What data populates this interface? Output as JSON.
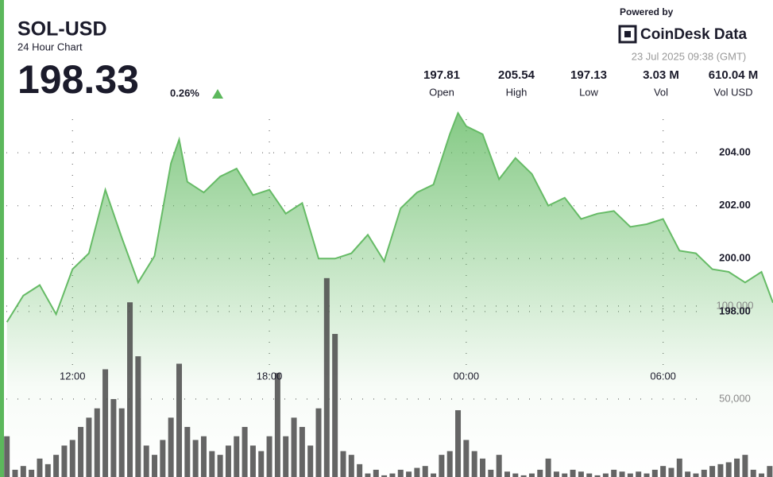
{
  "header": {
    "symbol": "SOL-USD",
    "subtitle": "24 Hour Chart",
    "price": "198.33",
    "change": "0.26%",
    "powered_by": "Powered by",
    "brand": "CoinDesk Data",
    "timestamp": "23 Jul 2025 09:38 (GMT)",
    "stats": [
      {
        "value": "197.81",
        "label": "Open"
      },
      {
        "value": "205.54",
        "label": "High"
      },
      {
        "value": "197.13",
        "label": "Low"
      },
      {
        "value": "3.03 M",
        "label": "Vol"
      },
      {
        "value": "610.04 M",
        "label": "Vol USD"
      }
    ]
  },
  "chart_data": {
    "type": "area",
    "grid": true,
    "xlim": [
      -14.21,
      9.35
    ],
    "xticks": [
      {
        "value": -12,
        "label": "12:00"
      },
      {
        "value": -6,
        "label": "18:00"
      },
      {
        "value": 0,
        "label": "00:00"
      },
      {
        "value": 6,
        "label": "06:00"
      }
    ],
    "ylim": [
      191.75,
      209.77
    ],
    "yticks": [
      {
        "value": 198,
        "label": "198.00"
      },
      {
        "value": 200,
        "label": "200.00"
      },
      {
        "value": 202,
        "label": "202.00"
      },
      {
        "value": 204,
        "label": "204.00"
      }
    ],
    "y2lim": [
      8100,
      264500
    ],
    "y2ticks": [
      {
        "value": 50000,
        "label": "50,000"
      },
      {
        "value": 100000,
        "label": "100,000"
      }
    ],
    "series": [
      {
        "type": "area",
        "color": "#66bb66",
        "x": [
          -14,
          -13.5,
          -13,
          -12.5,
          -12,
          -11.5,
          -11,
          -10.5,
          -10,
          -9.5,
          -9,
          -8.75,
          -8.5,
          -8,
          -7.5,
          -7,
          -6.5,
          -6,
          -5.5,
          -5,
          -4.5,
          -4,
          -3.5,
          -3,
          -2.5,
          -2,
          -1.5,
          -1,
          -0.5,
          -0.25,
          0,
          0.5,
          1,
          1.5,
          2,
          2.5,
          3,
          3.5,
          4,
          4.5,
          5,
          5.5,
          6,
          6.5,
          7,
          7.5,
          8,
          8.5,
          9,
          9.35
        ],
        "values": [
          197.6,
          198.6,
          199.0,
          197.9,
          199.6,
          200.2,
          202.6,
          200.8,
          199.1,
          200.1,
          203.6,
          204.5,
          202.9,
          202.5,
          203.1,
          203.4,
          202.4,
          202.6,
          201.7,
          202.1,
          200.0,
          200.0,
          200.2,
          200.9,
          199.9,
          201.9,
          202.5,
          202.8,
          204.7,
          205.5,
          205.0,
          204.7,
          203.0,
          203.8,
          203.2,
          202.0,
          202.3,
          201.5,
          201.7,
          201.8,
          201.2,
          201.3,
          201.5,
          200.3,
          200.2,
          199.6,
          199.5,
          199.1,
          199.5,
          198.33
        ]
      },
      {
        "type": "bar",
        "axis": "y2",
        "color": "#4a4a4a",
        "x": [
          -14,
          -13.75,
          -13.5,
          -13.25,
          -13,
          -12.75,
          -12.5,
          -12.25,
          -12,
          -11.75,
          -11.5,
          -11.25,
          -11,
          -10.75,
          -10.5,
          -10.25,
          -10,
          -9.75,
          -9.5,
          -9.25,
          -9,
          -8.75,
          -8.5,
          -8.25,
          -8,
          -7.75,
          -7.5,
          -7.25,
          -7,
          -6.75,
          -6.5,
          -6.25,
          -6,
          -5.75,
          -5.5,
          -5.25,
          -5,
          -4.75,
          -4.5,
          -4.25,
          -4,
          -3.75,
          -3.5,
          -3.25,
          -3,
          -2.75,
          -2.5,
          -2.25,
          -2,
          -1.75,
          -1.5,
          -1.25,
          -1,
          -0.75,
          -0.5,
          -0.25,
          0,
          0.25,
          0.5,
          0.75,
          1,
          1.25,
          1.5,
          1.75,
          2,
          2.25,
          2.5,
          2.75,
          3,
          3.25,
          3.5,
          3.75,
          4,
          4.25,
          4.5,
          4.75,
          5,
          5.25,
          5.5,
          5.75,
          6,
          6.25,
          6.5,
          6.75,
          7,
          7.25,
          7.5,
          7.75,
          8,
          8.25,
          8.5,
          8.75,
          9,
          9.25
        ],
        "values": [
          30000,
          12000,
          14000,
          12000,
          18000,
          15000,
          20000,
          25000,
          28000,
          35000,
          40000,
          45000,
          66000,
          50000,
          45000,
          102000,
          73000,
          25000,
          20000,
          28000,
          40000,
          69000,
          35000,
          28000,
          30000,
          22000,
          20000,
          25000,
          30000,
          35000,
          25000,
          22000,
          30000,
          64000,
          30000,
          40000,
          35000,
          25000,
          45000,
          115000,
          85000,
          22000,
          20000,
          15000,
          10000,
          12000,
          9000,
          10000,
          12000,
          11000,
          13000,
          14000,
          10000,
          20000,
          22000,
          44000,
          28000,
          22000,
          18000,
          12000,
          20000,
          11000,
          10000,
          9000,
          10000,
          12000,
          18000,
          11000,
          10000,
          12000,
          11000,
          10000,
          9000,
          10000,
          12000,
          11000,
          10000,
          11000,
          10000,
          12000,
          14000,
          13000,
          18000,
          11000,
          10000,
          12000,
          14000,
          15000,
          16000,
          18000,
          20000,
          12000,
          10000,
          14000
        ]
      }
    ]
  }
}
